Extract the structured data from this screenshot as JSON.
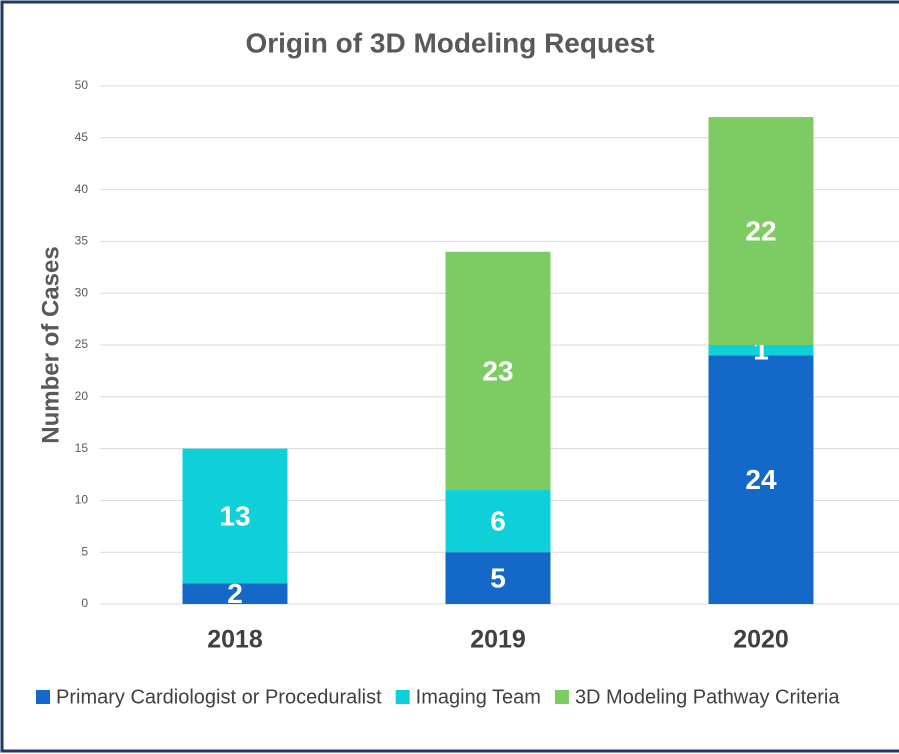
{
  "chart_data": {
    "type": "stacked_bar",
    "title": "Origin of 3D Modeling Request",
    "y_label": "Number of Cases",
    "categories": [
      "2018",
      "2019",
      "2020"
    ],
    "series": [
      {
        "name": "Primary Cardiologist or Proceduralist",
        "color": "#1468c8",
        "values": [
          2,
          5,
          24
        ]
      },
      {
        "name": "Imaging Team",
        "color": "#0fcfd8",
        "values": [
          13,
          6,
          1
        ]
      },
      {
        "name": "3D Modeling Pathway Criteria",
        "color": "#7ccc63",
        "values": [
          0,
          23,
          22
        ]
      }
    ],
    "ylim": [
      0,
      50
    ],
    "yticks": [
      0,
      5,
      10,
      15,
      20,
      25,
      30,
      35,
      40,
      45,
      50
    ],
    "grid": true,
    "legend": "bottom"
  }
}
